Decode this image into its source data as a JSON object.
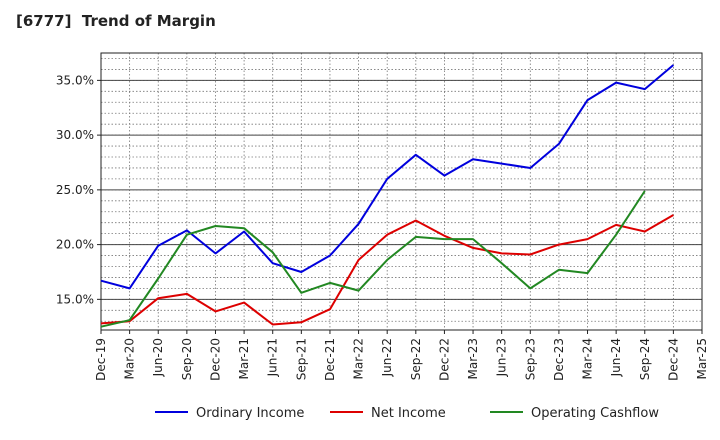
{
  "chart_data": {
    "type": "line",
    "title": "[6777]  Trend of Margin",
    "xlabel": "",
    "ylabel": "",
    "categories": [
      "Dec-19",
      "Mar-20",
      "Jun-20",
      "Sep-20",
      "Dec-20",
      "Mar-21",
      "Jun-21",
      "Sep-21",
      "Dec-21",
      "Mar-22",
      "Jun-22",
      "Sep-22",
      "Dec-22",
      "Mar-23",
      "Jun-23",
      "Sep-23",
      "Dec-23",
      "Mar-24",
      "Jun-24",
      "Sep-24",
      "Dec-24",
      "Mar-25"
    ],
    "ylim": [
      12.2,
      37.5
    ],
    "yticks": [
      15,
      20,
      25,
      30,
      35
    ],
    "ytick_labels": [
      "15.0%",
      "20.0%",
      "25.0%",
      "30.0%",
      "35.0%"
    ],
    "grid": true,
    "legend_position": "bottom",
    "series": [
      {
        "name": "Ordinary Income",
        "color": "#0000dd",
        "values": [
          16.7,
          16.0,
          19.9,
          21.3,
          19.2,
          21.2,
          18.3,
          17.5,
          19.0,
          21.9,
          26.0,
          28.2,
          26.3,
          27.8,
          27.4,
          27.0,
          29.2,
          33.2,
          34.8,
          34.2,
          36.4,
          null
        ]
      },
      {
        "name": "Net Income",
        "color": "#dd0000",
        "values": [
          12.8,
          13.0,
          15.1,
          15.5,
          13.9,
          14.7,
          12.7,
          12.9,
          14.1,
          18.6,
          20.9,
          22.2,
          20.8,
          19.7,
          19.2,
          19.1,
          20.0,
          20.5,
          21.8,
          21.2,
          22.7,
          null
        ]
      },
      {
        "name": "Operating Cashflow",
        "color": "#228822",
        "values": [
          12.5,
          13.1,
          16.9,
          20.9,
          21.7,
          21.5,
          19.3,
          15.6,
          16.5,
          15.8,
          18.6,
          20.7,
          20.5,
          20.5,
          18.3,
          16.0,
          17.7,
          17.4,
          20.9,
          24.9,
          null,
          null
        ]
      }
    ]
  }
}
